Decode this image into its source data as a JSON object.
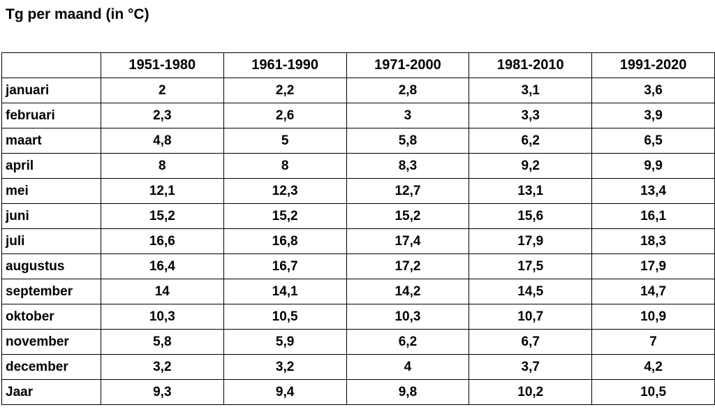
{
  "title": "Tg per maand (in °C)",
  "colors": {
    "text": "#000000",
    "border": "#000000",
    "background": "#ffffff"
  },
  "chart_data": {
    "type": "table",
    "title": "Tg per maand (in °C)",
    "unit": "°C",
    "columns": [
      "",
      "1951-1980",
      "1961-1990",
      "1971-2000",
      "1981-2010",
      "1991-2020"
    ],
    "rows": [
      {
        "label": "januari",
        "values": [
          "2",
          "2,2",
          "2,8",
          "3,1",
          "3,6"
        ]
      },
      {
        "label": "februari",
        "values": [
          "2,3",
          "2,6",
          "3",
          "3,3",
          "3,9"
        ]
      },
      {
        "label": "maart",
        "values": [
          "4,8",
          "5",
          "5,8",
          "6,2",
          "6,5"
        ]
      },
      {
        "label": "april",
        "values": [
          "8",
          "8",
          "8,3",
          "9,2",
          "9,9"
        ]
      },
      {
        "label": "mei",
        "values": [
          "12,1",
          "12,3",
          "12,7",
          "13,1",
          "13,4"
        ]
      },
      {
        "label": "juni",
        "values": [
          "15,2",
          "15,2",
          "15,2",
          "15,6",
          "16,1"
        ]
      },
      {
        "label": "juli",
        "values": [
          "16,6",
          "16,8",
          "17,4",
          "17,9",
          "18,3"
        ]
      },
      {
        "label": "augustus",
        "values": [
          "16,4",
          "16,7",
          "17,2",
          "17,5",
          "17,9"
        ]
      },
      {
        "label": "september",
        "values": [
          "14",
          "14,1",
          "14,2",
          "14,5",
          "14,7"
        ]
      },
      {
        "label": "oktober",
        "values": [
          "10,3",
          "10,5",
          "10,3",
          "10,7",
          "10,9"
        ]
      },
      {
        "label": "november",
        "values": [
          "5,8",
          "5,9",
          "6,2",
          "6,7",
          "7"
        ]
      },
      {
        "label": "december",
        "values": [
          "3,2",
          "3,2",
          "4",
          "3,7",
          "4,2"
        ]
      },
      {
        "label": "Jaar",
        "values": [
          "9,3",
          "9,4",
          "9,8",
          "10,2",
          "10,5"
        ]
      }
    ]
  }
}
